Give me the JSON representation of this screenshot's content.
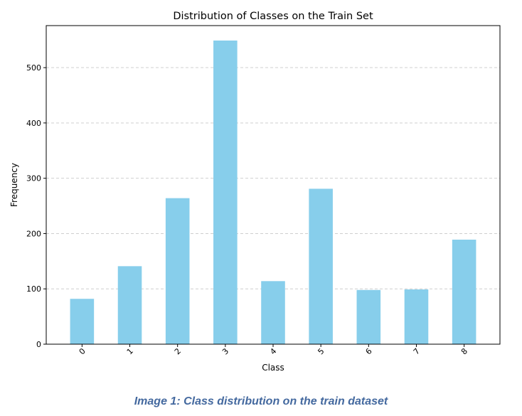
{
  "chart_data": {
    "type": "bar",
    "title": "Distribution of Classes on the Train Set",
    "xlabel": "Class",
    "ylabel": "Frequency",
    "categories": [
      "0",
      "1",
      "2",
      "3",
      "4",
      "5",
      "6",
      "7",
      "8"
    ],
    "values": [
      82,
      141,
      264,
      549,
      114,
      281,
      98,
      99,
      189
    ],
    "yticks": [
      "0",
      "100",
      "200",
      "300",
      "400",
      "500"
    ],
    "ylim": [
      0,
      576
    ],
    "grid": "y-dashed",
    "bar_color": "#87ceeb",
    "grid_color": "#c8c8c8"
  },
  "caption": "Image 1: Class distribution on the train dataset"
}
